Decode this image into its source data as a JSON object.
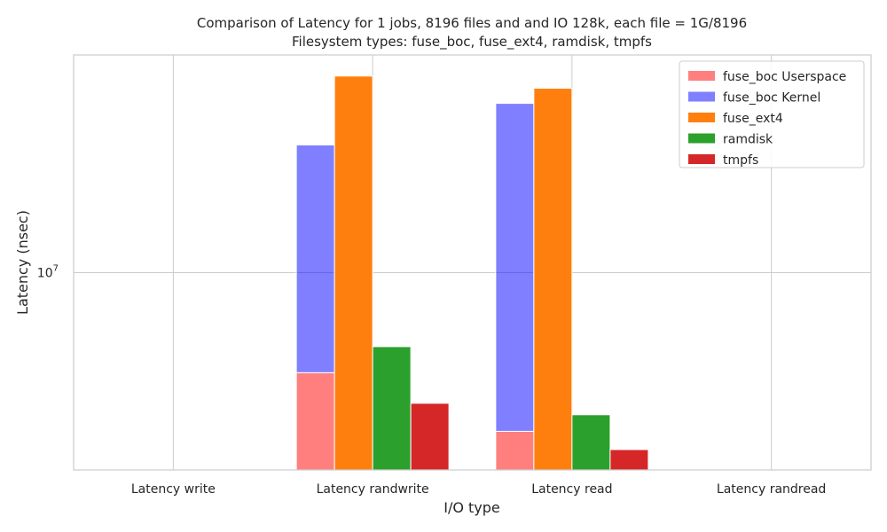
{
  "chart_data": {
    "type": "bar",
    "title": "Comparison of Latency for 1 jobs, 8196 files and  and IO 128k, each file = 1G/8196",
    "subtitle": "Filesystem types: fuse_boc, fuse_ext4, ramdisk, tmpfs",
    "xlabel": "I/O type",
    "ylabel": "Latency (nsec)",
    "y_scale": "log",
    "ylim": [
      3300000,
      34000000
    ],
    "y_ticks": [
      {
        "value": 10000000,
        "base": "10",
        "exp": "7"
      }
    ],
    "categories": [
      "Latency write",
      "Latency randwrite",
      "Latency read",
      "Latency randread"
    ],
    "series": [
      {
        "name": "fuse_boc Userspace",
        "color": "#ff7f7f",
        "alpha": 1,
        "values": [
          null,
          5700000,
          null,
          null
        ],
        "stack_group": "fuse_boc"
      },
      {
        "name": "fuse_boc Kernel",
        "color": "#0000ff",
        "alpha": 0.5,
        "values": [
          null,
          20500000,
          25900000,
          null
        ],
        "stack_group": "fuse_boc"
      },
      {
        "name": "fuse_ext4",
        "color": "#ff7f0e",
        "alpha": 1,
        "values": [
          null,
          30200000,
          28200000,
          null
        ]
      },
      {
        "name": "ramdisk",
        "color": "#2ca02c",
        "alpha": 1,
        "values": [
          null,
          6600000,
          4500000,
          null
        ]
      },
      {
        "name": "tmpfs",
        "color": "#d62728",
        "alpha": 1,
        "values": [
          null,
          4800000,
          3700000,
          null
        ]
      }
    ],
    "fuse_boc_userspace_read": 4100000,
    "grid": true,
    "legend_position": "top-right"
  }
}
